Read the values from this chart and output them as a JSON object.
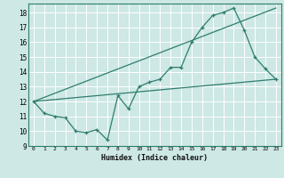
{
  "xlabel": "Humidex (Indice chaleur)",
  "bg_color": "#cde8e5",
  "grid_color": "#ffffff",
  "line_color": "#2e7d6e",
  "xlim": [
    -0.5,
    23.5
  ],
  "ylim": [
    9,
    18.6
  ],
  "yticks": [
    9,
    10,
    11,
    12,
    13,
    14,
    15,
    16,
    17,
    18
  ],
  "xticks": [
    0,
    1,
    2,
    3,
    4,
    5,
    6,
    7,
    8,
    9,
    10,
    11,
    12,
    13,
    14,
    15,
    16,
    17,
    18,
    19,
    20,
    21,
    22,
    23
  ],
  "line1_x": [
    0,
    1,
    2,
    3,
    4,
    5,
    6,
    7,
    8,
    9,
    10,
    11,
    12,
    13,
    14,
    15,
    16,
    17,
    18,
    19,
    20,
    21,
    22,
    23
  ],
  "line1_y": [
    12.0,
    11.2,
    11.0,
    10.9,
    10.0,
    9.9,
    10.1,
    9.4,
    12.4,
    11.5,
    13.0,
    13.3,
    13.5,
    14.3,
    14.3,
    16.0,
    17.0,
    17.8,
    18.0,
    18.3,
    16.8,
    15.0,
    14.2,
    13.5
  ],
  "line2_x": [
    0,
    23
  ],
  "line2_y": [
    12.0,
    13.5
  ],
  "line3_x": [
    0,
    23
  ],
  "line3_y": [
    12.0,
    18.3
  ]
}
